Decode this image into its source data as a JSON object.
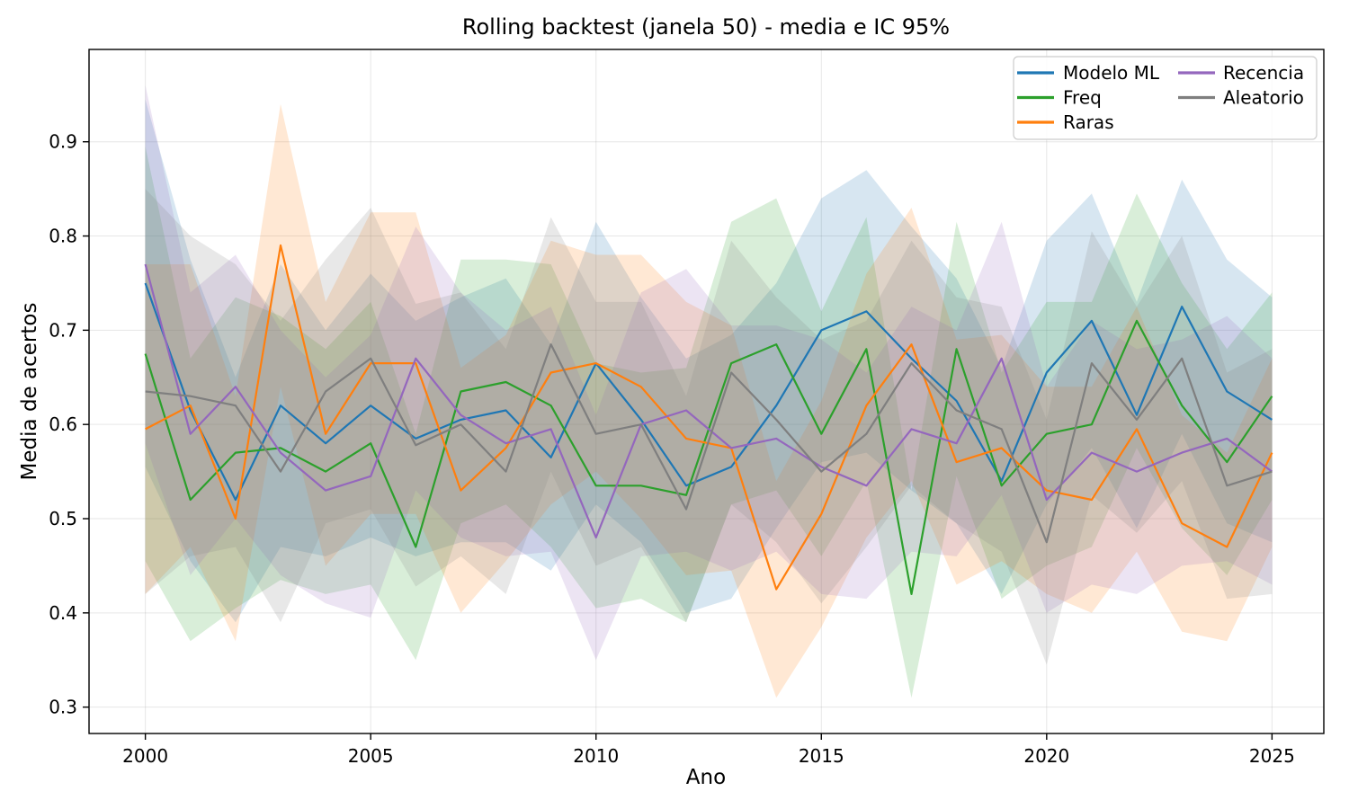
{
  "chart_data": {
    "type": "line",
    "title": "Rolling backtest (janela 50) - media e IC 95%",
    "xlabel": "Ano",
    "ylabel": "Media de acertos",
    "x": [
      2000,
      2001,
      2002,
      2003,
      2004,
      2005,
      2006,
      2007,
      2008,
      2009,
      2010,
      2011,
      2012,
      2013,
      2014,
      2015,
      2016,
      2017,
      2018,
      2019,
      2020,
      2021,
      2022,
      2023,
      2024,
      2025
    ],
    "xticks": [
      2000,
      2005,
      2010,
      2015,
      2020,
      2025
    ],
    "yticks": [
      0.3,
      0.4,
      0.5,
      0.6,
      0.7,
      0.8,
      0.9
    ],
    "xlim": [
      1998.75,
      2026.15
    ],
    "ylim": [
      0.272,
      0.998
    ],
    "grid": true,
    "band_alpha": 0.18,
    "legend": {
      "position": "upper right",
      "columns": 2
    },
    "series": [
      {
        "name": "Modelo ML",
        "color": "#1f77b4",
        "values": [
          0.75,
          0.615,
          0.52,
          0.62,
          0.58,
          0.62,
          0.585,
          0.605,
          0.615,
          0.565,
          0.665,
          0.605,
          0.535,
          0.555,
          0.62,
          0.7,
          0.72,
          0.67,
          0.625,
          0.54,
          0.655,
          0.71,
          0.61,
          0.725,
          0.635,
          0.605
        ],
        "ci_half": [
          0.195,
          0.16,
          0.13,
          0.15,
          0.12,
          0.14,
          0.125,
          0.13,
          0.14,
          0.12,
          0.15,
          0.13,
          0.135,
          0.14,
          0.13,
          0.14,
          0.15,
          0.14,
          0.13,
          0.12,
          0.14,
          0.135,
          0.12,
          0.135,
          0.14,
          0.13
        ]
      },
      {
        "name": "Freq",
        "color": "#2ca02c",
        "values": [
          0.675,
          0.52,
          0.57,
          0.575,
          0.55,
          0.58,
          0.47,
          0.635,
          0.645,
          0.62,
          0.535,
          0.535,
          0.525,
          0.665,
          0.685,
          0.59,
          0.68,
          0.42,
          0.68,
          0.535,
          0.59,
          0.6,
          0.71,
          0.62,
          0.56,
          0.63
        ],
        "ci_half": [
          0.22,
          0.15,
          0.165,
          0.14,
          0.13,
          0.15,
          0.12,
          0.14,
          0.13,
          0.15,
          0.13,
          0.12,
          0.135,
          0.15,
          0.155,
          0.13,
          0.14,
          0.11,
          0.135,
          0.12,
          0.14,
          0.13,
          0.135,
          0.13,
          0.12,
          0.11
        ]
      },
      {
        "name": "Raras",
        "color": "#ff7f0e",
        "values": [
          0.595,
          0.62,
          0.5,
          0.79,
          0.59,
          0.665,
          0.665,
          0.53,
          0.575,
          0.655,
          0.665,
          0.64,
          0.585,
          0.575,
          0.425,
          0.505,
          0.62,
          0.685,
          0.56,
          0.575,
          0.53,
          0.52,
          0.595,
          0.495,
          0.47,
          0.57
        ],
        "ci_half": [
          0.175,
          0.15,
          0.13,
          0.15,
          0.14,
          0.16,
          0.16,
          0.13,
          0.12,
          0.14,
          0.115,
          0.14,
          0.145,
          0.13,
          0.115,
          0.12,
          0.14,
          0.145,
          0.13,
          0.12,
          0.11,
          0.12,
          0.13,
          0.115,
          0.1,
          0.1
        ]
      },
      {
        "name": "Recencia",
        "color": "#9467bd",
        "values": [
          0.77,
          0.59,
          0.64,
          0.57,
          0.53,
          0.545,
          0.67,
          0.61,
          0.58,
          0.595,
          0.48,
          0.6,
          0.615,
          0.575,
          0.585,
          0.555,
          0.535,
          0.595,
          0.58,
          0.67,
          0.52,
          0.57,
          0.55,
          0.57,
          0.585,
          0.55
        ],
        "ci_half": [
          0.19,
          0.15,
          0.14,
          0.13,
          0.12,
          0.15,
          0.14,
          0.13,
          0.12,
          0.13,
          0.13,
          0.14,
          0.15,
          0.13,
          0.12,
          0.135,
          0.12,
          0.13,
          0.12,
          0.145,
          0.12,
          0.14,
          0.13,
          0.12,
          0.13,
          0.12
        ]
      },
      {
        "name": "Aleatorio",
        "color": "#7f7f7f",
        "values": [
          0.635,
          0.63,
          0.62,
          0.55,
          0.635,
          0.67,
          0.578,
          0.6,
          0.55,
          0.685,
          0.59,
          0.6,
          0.51,
          0.655,
          0.605,
          0.55,
          0.59,
          0.665,
          0.615,
          0.595,
          0.475,
          0.665,
          0.605,
          0.67,
          0.535,
          0.55
        ],
        "ci_half": [
          0.215,
          0.17,
          0.15,
          0.16,
          0.14,
          0.16,
          0.15,
          0.14,
          0.13,
          0.135,
          0.14,
          0.13,
          0.12,
          0.14,
          0.13,
          0.14,
          0.12,
          0.13,
          0.12,
          0.13,
          0.13,
          0.14,
          0.12,
          0.13,
          0.12,
          0.13
        ]
      }
    ]
  }
}
